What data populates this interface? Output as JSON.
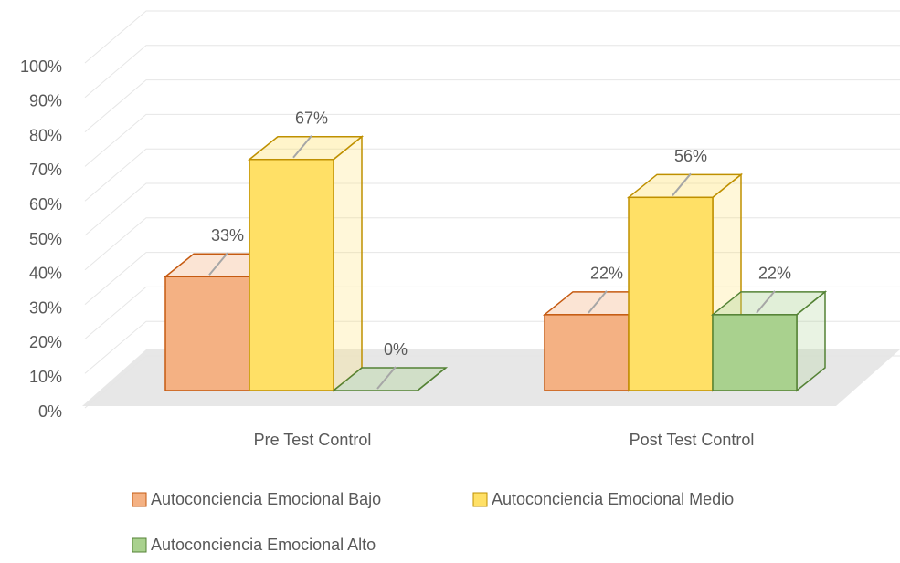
{
  "chart_data": {
    "type": "bar",
    "categories": [
      "Pre Test Control",
      "Post Test Control"
    ],
    "series": [
      {
        "name": "Autoconciencia Emocional Bajo",
        "color": "#f4b183",
        "values": [
          33,
          22
        ],
        "value_labels": [
          "33%",
          "22%"
        ]
      },
      {
        "name": "Autoconciencia Emocional Medio",
        "color": "#ffe066",
        "values": [
          67,
          56
        ],
        "value_labels": [
          "67%",
          "56%"
        ]
      },
      {
        "name": "Autoconciencia Emocional Alto",
        "color": "#a9d18e",
        "values": [
          0,
          22
        ],
        "value_labels": [
          "0%",
          "22%"
        ]
      }
    ],
    "ylim": [
      0,
      100
    ],
    "yticks": [
      {
        "value": 0,
        "label": "0%"
      },
      {
        "value": 10,
        "label": "10%"
      },
      {
        "value": 20,
        "label": "20%"
      },
      {
        "value": 30,
        "label": "30%"
      },
      {
        "value": 40,
        "label": "40%"
      },
      {
        "value": 50,
        "label": "50%"
      },
      {
        "value": 60,
        "label": "60%"
      },
      {
        "value": 70,
        "label": "70%"
      },
      {
        "value": 80,
        "label": "80%"
      },
      {
        "value": 90,
        "label": "90%"
      },
      {
        "value": 100,
        "label": "100%"
      }
    ],
    "grid": true
  }
}
